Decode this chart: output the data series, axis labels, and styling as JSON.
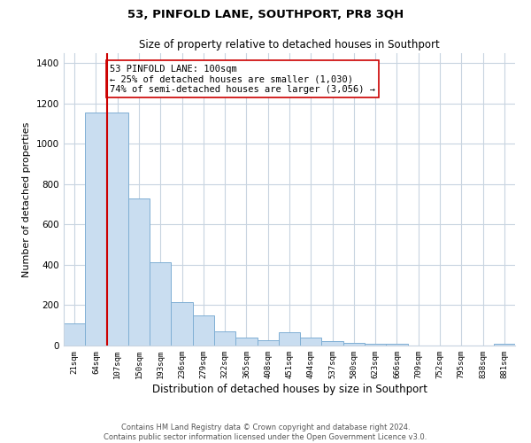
{
  "title": "53, PINFOLD LANE, SOUTHPORT, PR8 3QH",
  "subtitle": "Size of property relative to detached houses in Southport",
  "xlabel": "Distribution of detached houses by size in Southport",
  "ylabel": "Number of detached properties",
  "bar_labels": [
    "21sqm",
    "64sqm",
    "107sqm",
    "150sqm",
    "193sqm",
    "236sqm",
    "279sqm",
    "322sqm",
    "365sqm",
    "408sqm",
    "451sqm",
    "494sqm",
    "537sqm",
    "580sqm",
    "623sqm",
    "666sqm",
    "709sqm",
    "752sqm",
    "795sqm",
    "838sqm",
    "881sqm"
  ],
  "bar_values": [
    110,
    1155,
    1155,
    730,
    415,
    215,
    148,
    70,
    40,
    25,
    65,
    40,
    22,
    15,
    10,
    8,
    0,
    0,
    0,
    0,
    10
  ],
  "bar_color": "#c9ddf0",
  "bar_edge_color": "#7fafd4",
  "vline_color": "#cc0000",
  "vline_x": 1.5,
  "annotation_text": "53 PINFOLD LANE: 100sqm\n← 25% of detached houses are smaller (1,030)\n74% of semi-detached houses are larger (3,056) →",
  "annotation_box_color": "#ffffff",
  "annotation_box_edge": "#cc0000",
  "ylim": [
    0,
    1450
  ],
  "yticks": [
    0,
    200,
    400,
    600,
    800,
    1000,
    1200,
    1400
  ],
  "footer_line1": "Contains HM Land Registry data © Crown copyright and database right 2024.",
  "footer_line2": "Contains public sector information licensed under the Open Government Licence v3.0.",
  "background_color": "#ffffff",
  "grid_color": "#c8d4e0",
  "title_fontsize": 9.5,
  "subtitle_fontsize": 8.5
}
